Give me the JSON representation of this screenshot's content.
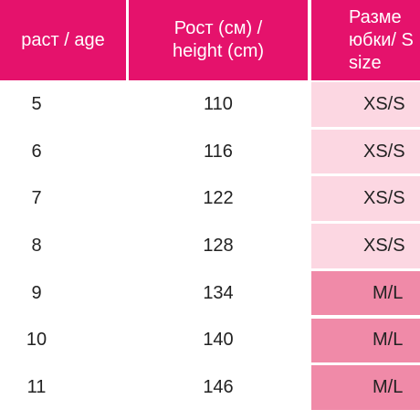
{
  "table": {
    "header": [
      [
        "раст / age"
      ],
      [
        "Рост (см) /",
        "height (cm)"
      ],
      [
        "Разме",
        "юбки/ S",
        "size"
      ]
    ],
    "header_color": "#e5126c",
    "rows": [
      {
        "age": 5,
        "height": 110,
        "size": "XS/S",
        "color": "#fcd7e2"
      },
      {
        "age": 6,
        "height": 116,
        "size": "XS/S",
        "color": "#fcd7e2"
      },
      {
        "age": 7,
        "height": 122,
        "size": "XS/S",
        "color": "#fcd7e2"
      },
      {
        "age": 8,
        "height": 128,
        "size": "XS/S",
        "color": "#fcd7e2"
      },
      {
        "age": 9,
        "height": 134,
        "size": "M/L",
        "color": "#f08aa8"
      },
      {
        "age": 10,
        "height": 140,
        "size": "M/L",
        "color": "#f08aa8"
      },
      {
        "age": 11,
        "height": 146,
        "size": "M/L",
        "color": "#f08aa8"
      }
    ]
  }
}
